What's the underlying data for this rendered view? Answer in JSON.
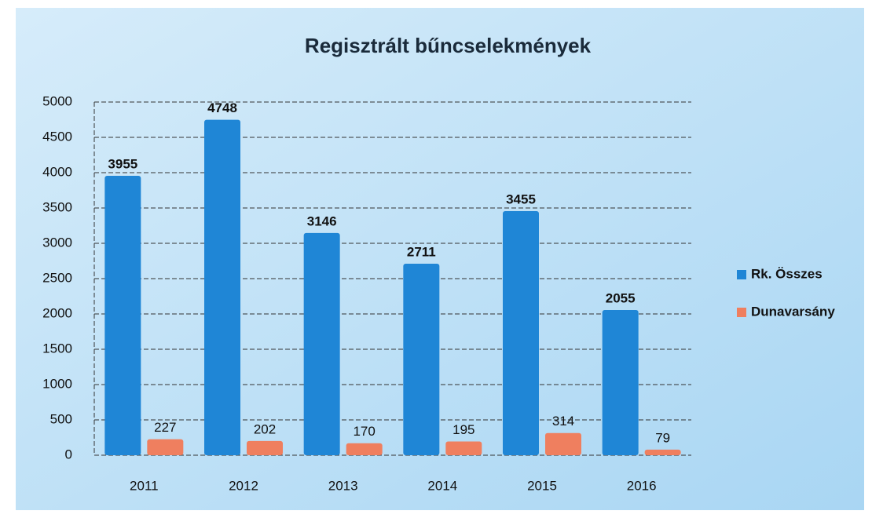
{
  "chart_data": {
    "type": "bar",
    "title": "Regisztrált bűncselekmények",
    "categories": [
      "2011",
      "2012",
      "2013",
      "2014",
      "2015",
      "2016"
    ],
    "series": [
      {
        "name": "Rk. Összes",
        "color": "#1f86d6",
        "values": [
          3955,
          4748,
          3146,
          2711,
          3455,
          2055
        ]
      },
      {
        "name": "Dunavarsány",
        "color": "#ef7f5f",
        "values": [
          227,
          202,
          170,
          195,
          314,
          79
        ]
      }
    ],
    "ylim": [
      0,
      5000
    ],
    "yticks": [
      0,
      500,
      1000,
      1500,
      2000,
      2500,
      3000,
      3500,
      4000,
      4500,
      5000
    ],
    "grid": true,
    "legend": "right"
  }
}
